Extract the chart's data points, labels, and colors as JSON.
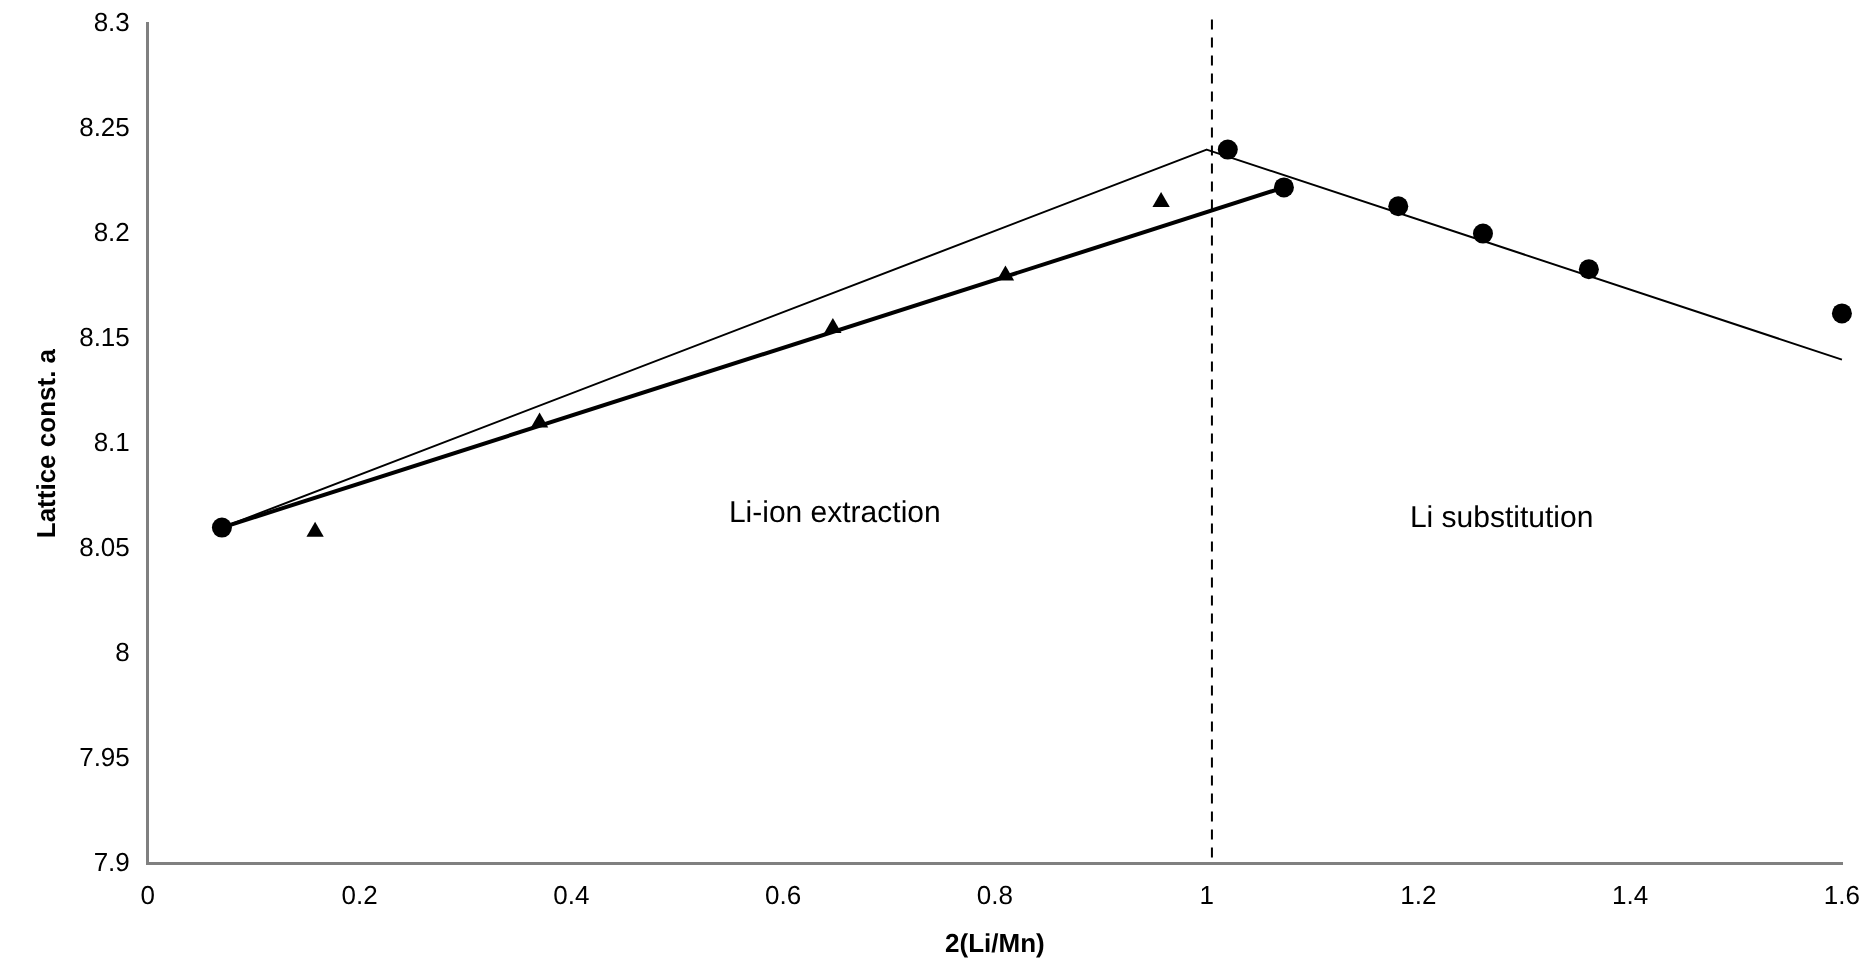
{
  "chart_data": {
    "type": "scatter",
    "xlabel": "2(Li/Mn)",
    "ylabel": "Lattice const. a",
    "xlim": [
      0,
      1.6
    ],
    "xticks": [
      0,
      0.2,
      0.4,
      0.6,
      0.8,
      1,
      1.2,
      1.4,
      1.6
    ],
    "ylim": [
      7.9,
      8.3
    ],
    "yticks": [
      7.9,
      7.95,
      8,
      8.05,
      8.1,
      8.15,
      8.2,
      8.25,
      8.3
    ],
    "grid": false,
    "legend": false,
    "series": [
      {
        "type": "line",
        "color": "#000000",
        "marker": "none",
        "x": [
          0.07,
          1.0,
          1.6
        ],
        "values": [
          8.06,
          8.24,
          8.14
        ]
      },
      {
        "type": "line",
        "color": "#000000",
        "marker": "none",
        "x": [
          0.07,
          1.073
        ],
        "values": [
          8.06,
          8.222
        ]
      },
      {
        "color": "#000000",
        "marker": "triangle",
        "x": [
          0.158,
          0.37,
          0.647,
          0.81,
          0.957
        ],
        "values": [
          8.058,
          8.11,
          8.155,
          8.18,
          8.215
        ]
      },
      {
        "color": "#000000",
        "marker": "circle",
        "x": [
          0.07,
          1.02,
          1.073,
          1.181,
          1.261,
          1.361,
          1.6
        ],
        "values": [
          8.06,
          8.24,
          8.222,
          8.213,
          8.2,
          8.183,
          8.162
        ]
      }
    ],
    "ref_lines": [
      {
        "axis": "x",
        "value": 1.005,
        "line_style": "dashed",
        "color": "#000000"
      }
    ],
    "annotations": [
      "Li-ion extraction",
      "Li substitution"
    ]
  }
}
